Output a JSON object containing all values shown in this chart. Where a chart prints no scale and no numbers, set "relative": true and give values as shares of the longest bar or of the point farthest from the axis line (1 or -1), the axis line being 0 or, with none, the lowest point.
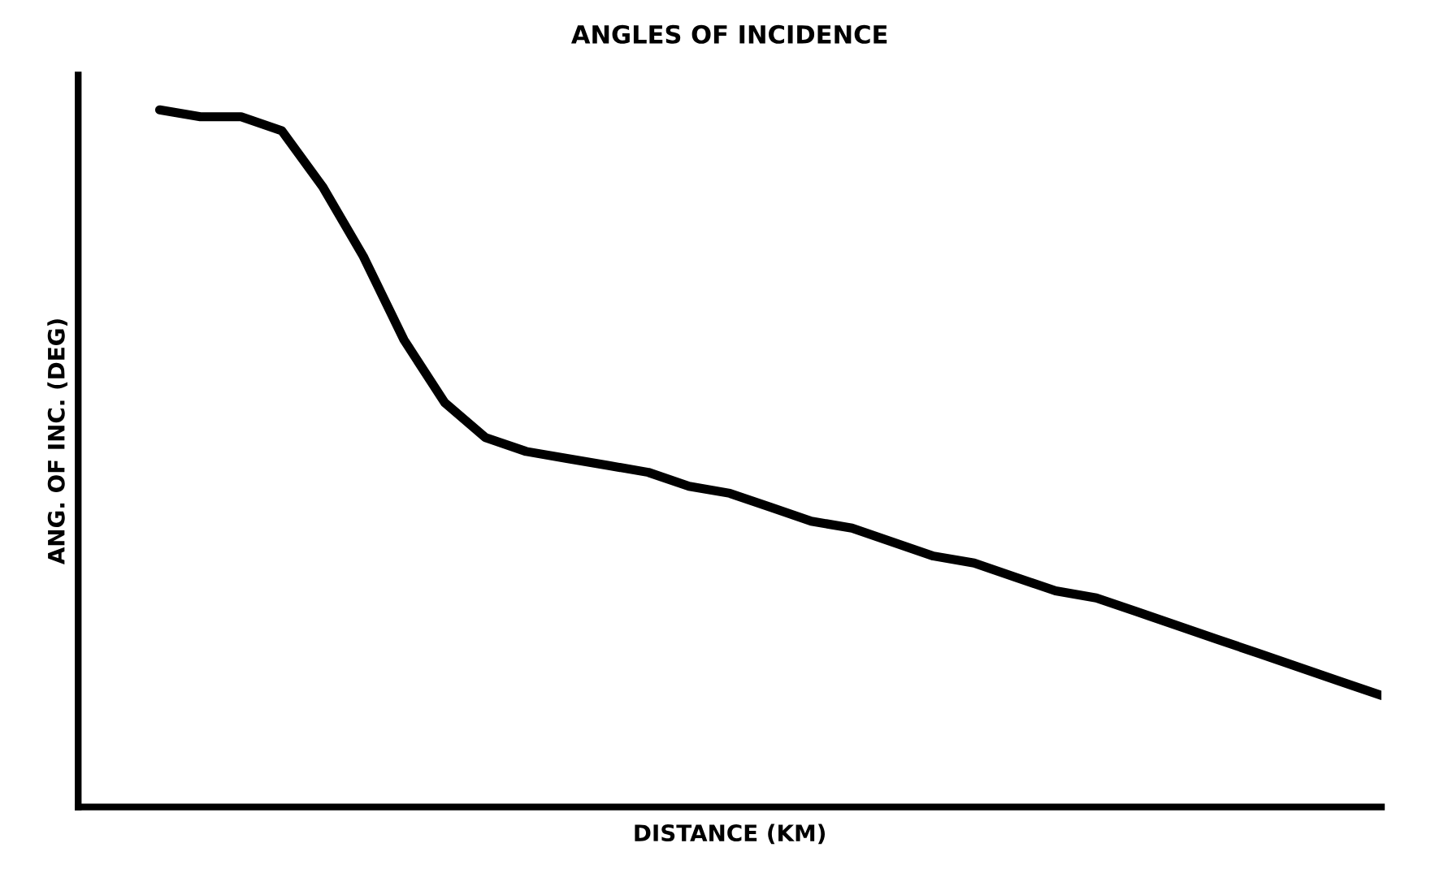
{
  "chart_data": {
    "type": "line",
    "title": "ANGLES OF INCIDENCE",
    "xlabel": "DISTANCE (KM)",
    "ylabel": "ANG. OF INC. (DEG)",
    "relative": true,
    "categories": [
      null,
      null,
      null,
      null,
      null,
      null,
      null,
      null,
      null,
      null,
      null,
      null,
      null,
      null,
      null,
      null,
      null,
      null,
      null,
      null,
      null,
      null,
      null,
      null,
      null,
      null,
      null,
      null,
      null,
      null,
      null,
      null,
      null
    ],
    "series": [
      {
        "color": "#000000",
        "values": [
          null,
          null,
          1.0,
          0.99,
          0.99,
          0.97,
          0.89,
          0.79,
          0.67,
          0.58,
          0.53,
          0.51,
          0.5,
          0.49,
          0.48,
          0.46,
          0.45,
          0.43,
          0.41,
          0.4,
          0.38,
          0.36,
          0.35,
          0.33,
          0.31,
          0.3,
          0.28,
          0.26,
          0.24,
          0.22,
          0.2,
          0.18,
          0.16
        ]
      }
    ],
    "grid": false,
    "legend": false,
    "marker": "none",
    "line_style": "solid"
  }
}
